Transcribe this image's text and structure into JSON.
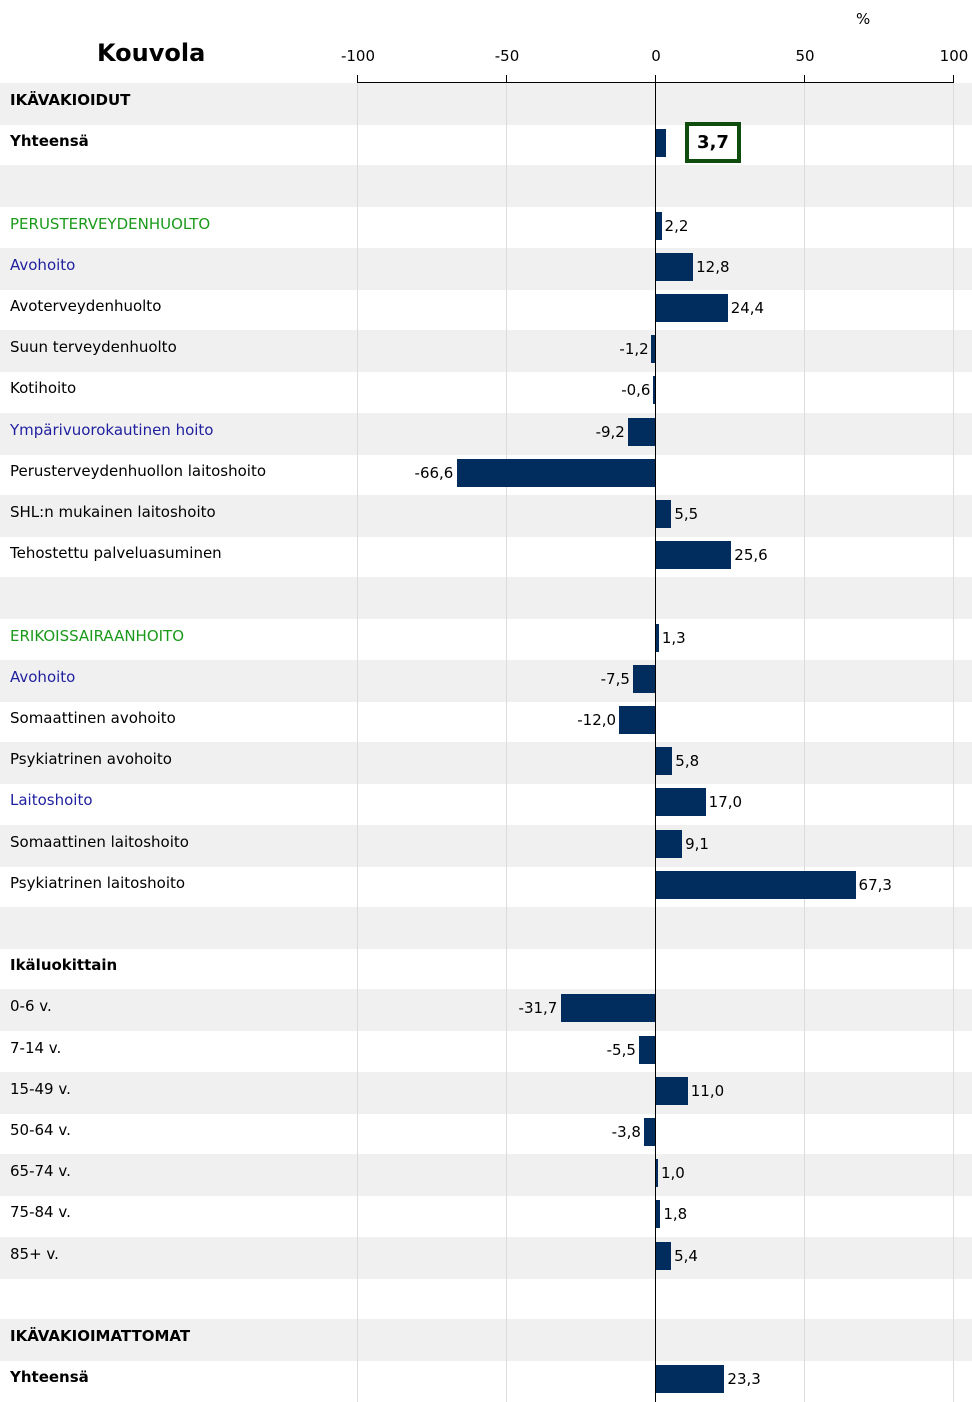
{
  "chart_data": {
    "type": "bar",
    "orientation": "horizontal",
    "title": "Kouvola",
    "unit": "%",
    "xlim": [
      -100,
      100
    ],
    "x_ticks": [
      "-100",
      "-50",
      "0",
      "50",
      "100"
    ],
    "grid": true,
    "headline_value": "3,7",
    "rows": [
      {
        "label": "IKÄVAKIOIDUT",
        "style": "bold",
        "value": null,
        "value_label": ""
      },
      {
        "label": "Yhteensä",
        "style": "bold",
        "value": 3.7,
        "value_label": ""
      },
      {
        "label": "",
        "style": "plain",
        "value": null,
        "value_label": ""
      },
      {
        "label": "PERUSTERVEYDENHUOLTO",
        "style": "green",
        "value": 2.2,
        "value_label": "2,2"
      },
      {
        "label": "Avohoito",
        "style": "blue",
        "value": 12.8,
        "value_label": "12,8"
      },
      {
        "label": "Avoterveydenhuolto",
        "style": "plain",
        "value": 24.4,
        "value_label": "24,4"
      },
      {
        "label": "Suun terveydenhuolto",
        "style": "plain",
        "value": -1.2,
        "value_label": "-1,2"
      },
      {
        "label": "Kotihoito",
        "style": "plain",
        "value": -0.6,
        "value_label": "-0,6"
      },
      {
        "label": "Ympärivuorokautinen hoito",
        "style": "blue",
        "value": -9.2,
        "value_label": "-9,2"
      },
      {
        "label": "Perusterveydenhuollon laitoshoito",
        "style": "plain",
        "value": -66.6,
        "value_label": "-66,6"
      },
      {
        "label": "SHL:n mukainen laitoshoito",
        "style": "plain",
        "value": 5.5,
        "value_label": "5,5"
      },
      {
        "label": "Tehostettu palveluasuminen",
        "style": "plain",
        "value": 25.6,
        "value_label": "25,6"
      },
      {
        "label": "",
        "style": "plain",
        "value": null,
        "value_label": ""
      },
      {
        "label": "ERIKOISSAIRAANHOITO",
        "style": "green",
        "value": 1.3,
        "value_label": "1,3"
      },
      {
        "label": "Avohoito",
        "style": "blue",
        "value": -7.5,
        "value_label": "-7,5"
      },
      {
        "label": "Somaattinen avohoito",
        "style": "plain",
        "value": -12.0,
        "value_label": "-12,0"
      },
      {
        "label": "Psykiatrinen avohoito",
        "style": "plain",
        "value": 5.8,
        "value_label": "5,8"
      },
      {
        "label": "Laitoshoito",
        "style": "blue",
        "value": 17.0,
        "value_label": "17,0"
      },
      {
        "label": "Somaattinen laitoshoito",
        "style": "plain",
        "value": 9.1,
        "value_label": "9,1"
      },
      {
        "label": "Psykiatrinen laitoshoito",
        "style": "plain",
        "value": 67.3,
        "value_label": "67,3"
      },
      {
        "label": "",
        "style": "plain",
        "value": null,
        "value_label": ""
      },
      {
        "label": "Ikäluokittain",
        "style": "bold",
        "value": null,
        "value_label": ""
      },
      {
        "label": "0-6 v.",
        "style": "plain",
        "value": -31.7,
        "value_label": "-31,7"
      },
      {
        "label": "7-14 v.",
        "style": "plain",
        "value": -5.5,
        "value_label": "-5,5"
      },
      {
        "label": "15-49 v.",
        "style": "plain",
        "value": 11.0,
        "value_label": "11,0"
      },
      {
        "label": "50-64 v.",
        "style": "plain",
        "value": -3.8,
        "value_label": "-3,8"
      },
      {
        "label": "65-74 v.",
        "style": "plain",
        "value": 1.0,
        "value_label": "1,0"
      },
      {
        "label": "75-84 v.",
        "style": "plain",
        "value": 1.8,
        "value_label": "1,8"
      },
      {
        "label": "85+ v.",
        "style": "plain",
        "value": 5.4,
        "value_label": "5,4"
      },
      {
        "label": "",
        "style": "plain",
        "value": null,
        "value_label": ""
      },
      {
        "label": "IKÄVAKIOIMATTOMAT",
        "style": "bold",
        "value": null,
        "value_label": ""
      },
      {
        "label": "Yhteensä",
        "style": "bold",
        "value": 23.3,
        "value_label": "23,3"
      }
    ],
    "colors": {
      "bar": "#002d5e",
      "band": "#f0f0f0",
      "section_heading": "#1a9a1a",
      "subsection_heading": "#1f1fa0",
      "headline_border": "#0f4d0f"
    }
  }
}
